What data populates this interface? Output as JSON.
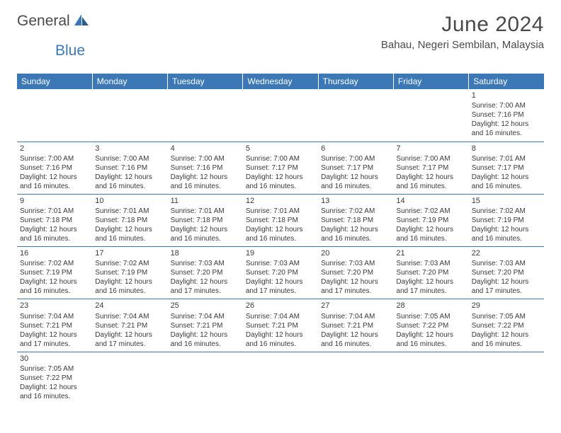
{
  "logo": {
    "text1": "General",
    "text2": "Blue"
  },
  "title": "June 2024",
  "location": "Bahau, Negeri Sembilan, Malaysia",
  "header_bg": "#3b78b5",
  "header_fg": "#ffffff",
  "border_color": "#3b78b5",
  "text_color": "#3a3a3a",
  "font_family": "Arial, Helvetica, sans-serif",
  "title_fontsize": 30,
  "location_fontsize": 15,
  "dayhead_fontsize": 12,
  "cell_fontsize": 10,
  "columns": [
    "Sunday",
    "Monday",
    "Tuesday",
    "Wednesday",
    "Thursday",
    "Friday",
    "Saturday"
  ],
  "weeks": [
    [
      null,
      null,
      null,
      null,
      null,
      null,
      {
        "d": "1",
        "sr": "7:00 AM",
        "ss": "7:16 PM",
        "dl": "12 hours and 16 minutes."
      }
    ],
    [
      {
        "d": "2",
        "sr": "7:00 AM",
        "ss": "7:16 PM",
        "dl": "12 hours and 16 minutes."
      },
      {
        "d": "3",
        "sr": "7:00 AM",
        "ss": "7:16 PM",
        "dl": "12 hours and 16 minutes."
      },
      {
        "d": "4",
        "sr": "7:00 AM",
        "ss": "7:16 PM",
        "dl": "12 hours and 16 minutes."
      },
      {
        "d": "5",
        "sr": "7:00 AM",
        "ss": "7:17 PM",
        "dl": "12 hours and 16 minutes."
      },
      {
        "d": "6",
        "sr": "7:00 AM",
        "ss": "7:17 PM",
        "dl": "12 hours and 16 minutes."
      },
      {
        "d": "7",
        "sr": "7:00 AM",
        "ss": "7:17 PM",
        "dl": "12 hours and 16 minutes."
      },
      {
        "d": "8",
        "sr": "7:01 AM",
        "ss": "7:17 PM",
        "dl": "12 hours and 16 minutes."
      }
    ],
    [
      {
        "d": "9",
        "sr": "7:01 AM",
        "ss": "7:18 PM",
        "dl": "12 hours and 16 minutes."
      },
      {
        "d": "10",
        "sr": "7:01 AM",
        "ss": "7:18 PM",
        "dl": "12 hours and 16 minutes."
      },
      {
        "d": "11",
        "sr": "7:01 AM",
        "ss": "7:18 PM",
        "dl": "12 hours and 16 minutes."
      },
      {
        "d": "12",
        "sr": "7:01 AM",
        "ss": "7:18 PM",
        "dl": "12 hours and 16 minutes."
      },
      {
        "d": "13",
        "sr": "7:02 AM",
        "ss": "7:18 PM",
        "dl": "12 hours and 16 minutes."
      },
      {
        "d": "14",
        "sr": "7:02 AM",
        "ss": "7:19 PM",
        "dl": "12 hours and 16 minutes."
      },
      {
        "d": "15",
        "sr": "7:02 AM",
        "ss": "7:19 PM",
        "dl": "12 hours and 16 minutes."
      }
    ],
    [
      {
        "d": "16",
        "sr": "7:02 AM",
        "ss": "7:19 PM",
        "dl": "12 hours and 16 minutes."
      },
      {
        "d": "17",
        "sr": "7:02 AM",
        "ss": "7:19 PM",
        "dl": "12 hours and 16 minutes."
      },
      {
        "d": "18",
        "sr": "7:03 AM",
        "ss": "7:20 PM",
        "dl": "12 hours and 17 minutes."
      },
      {
        "d": "19",
        "sr": "7:03 AM",
        "ss": "7:20 PM",
        "dl": "12 hours and 17 minutes."
      },
      {
        "d": "20",
        "sr": "7:03 AM",
        "ss": "7:20 PM",
        "dl": "12 hours and 17 minutes."
      },
      {
        "d": "21",
        "sr": "7:03 AM",
        "ss": "7:20 PM",
        "dl": "12 hours and 17 minutes."
      },
      {
        "d": "22",
        "sr": "7:03 AM",
        "ss": "7:20 PM",
        "dl": "12 hours and 17 minutes."
      }
    ],
    [
      {
        "d": "23",
        "sr": "7:04 AM",
        "ss": "7:21 PM",
        "dl": "12 hours and 17 minutes."
      },
      {
        "d": "24",
        "sr": "7:04 AM",
        "ss": "7:21 PM",
        "dl": "12 hours and 17 minutes."
      },
      {
        "d": "25",
        "sr": "7:04 AM",
        "ss": "7:21 PM",
        "dl": "12 hours and 16 minutes."
      },
      {
        "d": "26",
        "sr": "7:04 AM",
        "ss": "7:21 PM",
        "dl": "12 hours and 16 minutes."
      },
      {
        "d": "27",
        "sr": "7:04 AM",
        "ss": "7:21 PM",
        "dl": "12 hours and 16 minutes."
      },
      {
        "d": "28",
        "sr": "7:05 AM",
        "ss": "7:22 PM",
        "dl": "12 hours and 16 minutes."
      },
      {
        "d": "29",
        "sr": "7:05 AM",
        "ss": "7:22 PM",
        "dl": "12 hours and 16 minutes."
      }
    ],
    [
      {
        "d": "30",
        "sr": "7:05 AM",
        "ss": "7:22 PM",
        "dl": "12 hours and 16 minutes."
      },
      null,
      null,
      null,
      null,
      null,
      null
    ]
  ],
  "labels": {
    "sunrise": "Sunrise: ",
    "sunset": "Sunset: ",
    "daylight": "Daylight: "
  }
}
